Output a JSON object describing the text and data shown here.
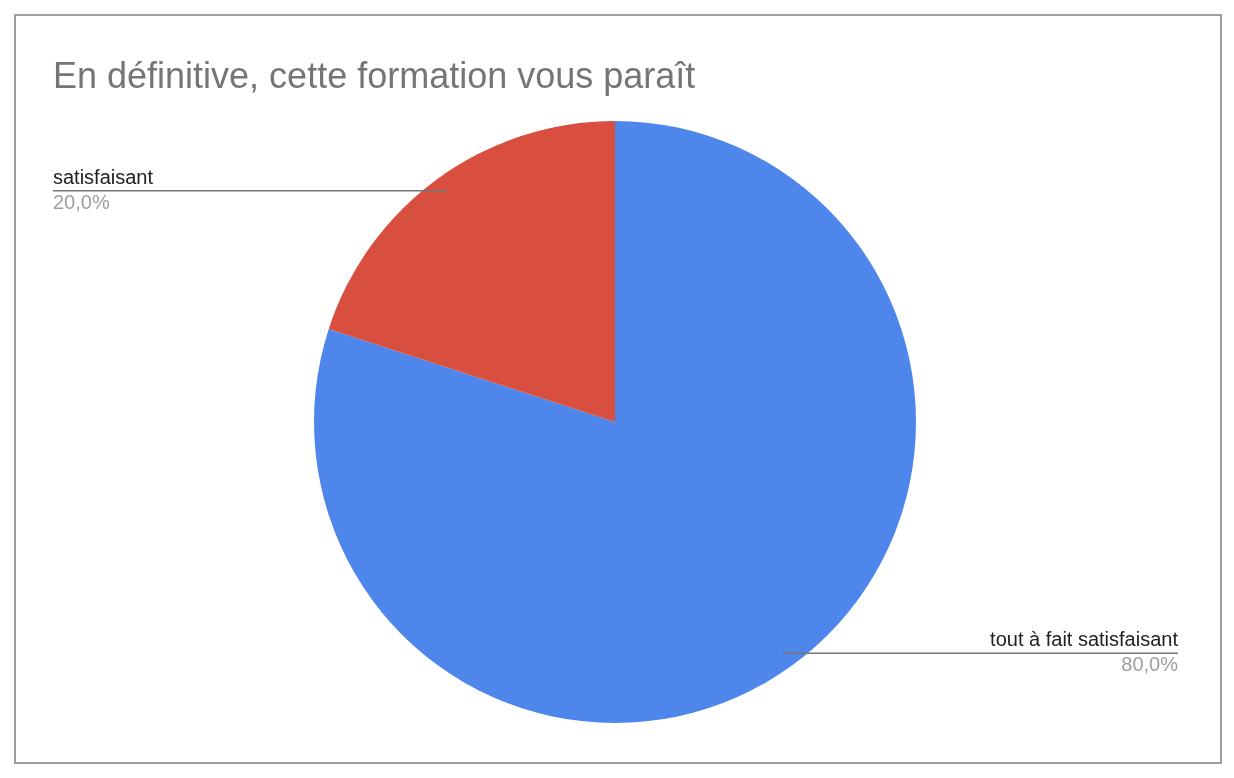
{
  "chart_data": {
    "type": "pie",
    "title": "En définitive, cette formation vous paraît",
    "categories": [
      "tout à fait satisfaisant",
      "satisfaisant"
    ],
    "values": [
      80,
      20
    ],
    "colors": [
      "#4e86ec",
      "#d94f3f"
    ],
    "value_labels": [
      "80,0%",
      "20,0%"
    ]
  }
}
